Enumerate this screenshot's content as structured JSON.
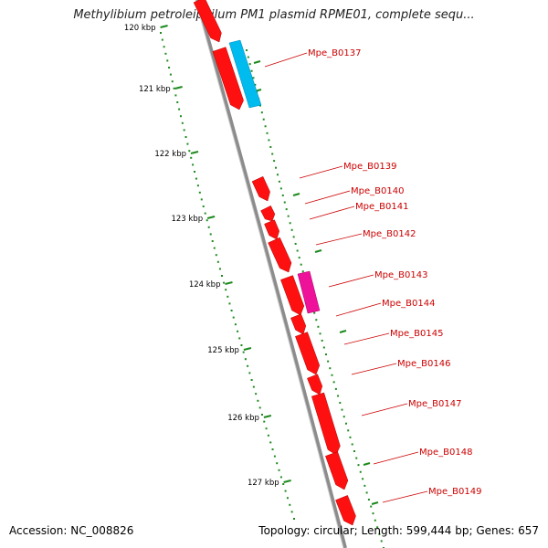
{
  "title": "Methylibium petroleiphilum PM1 plasmid RPME01, complete sequ...",
  "footer": {
    "accession": "Accession: NC_008826",
    "summary": "Topology: circular; Length: 599,444 bp; Genes: 657"
  },
  "colors": {
    "backbone": "#8c8c8c",
    "gene_red": "#ff1010",
    "gene_cyan": "#00bbee",
    "gene_magenta": "#ee1199",
    "scale_green": "#1d8a1d",
    "label_red": "#cc0000"
  },
  "scale_ticks": [
    "120 kbp",
    "121 kbp",
    "122 kbp",
    "123 kbp",
    "124 kbp",
    "125 kbp",
    "126 kbp",
    "127 kbp"
  ],
  "gene_labels": [
    "Mpe_B0137",
    "Mpe_B0139",
    "Mpe_B0140",
    "Mpe_B0141",
    "Mpe_B0142",
    "Mpe_B0143",
    "Mpe_B0144",
    "Mpe_B0145",
    "Mpe_B0146",
    "Mpe_B0147",
    "Mpe_B0148",
    "Mpe_B0149"
  ]
}
